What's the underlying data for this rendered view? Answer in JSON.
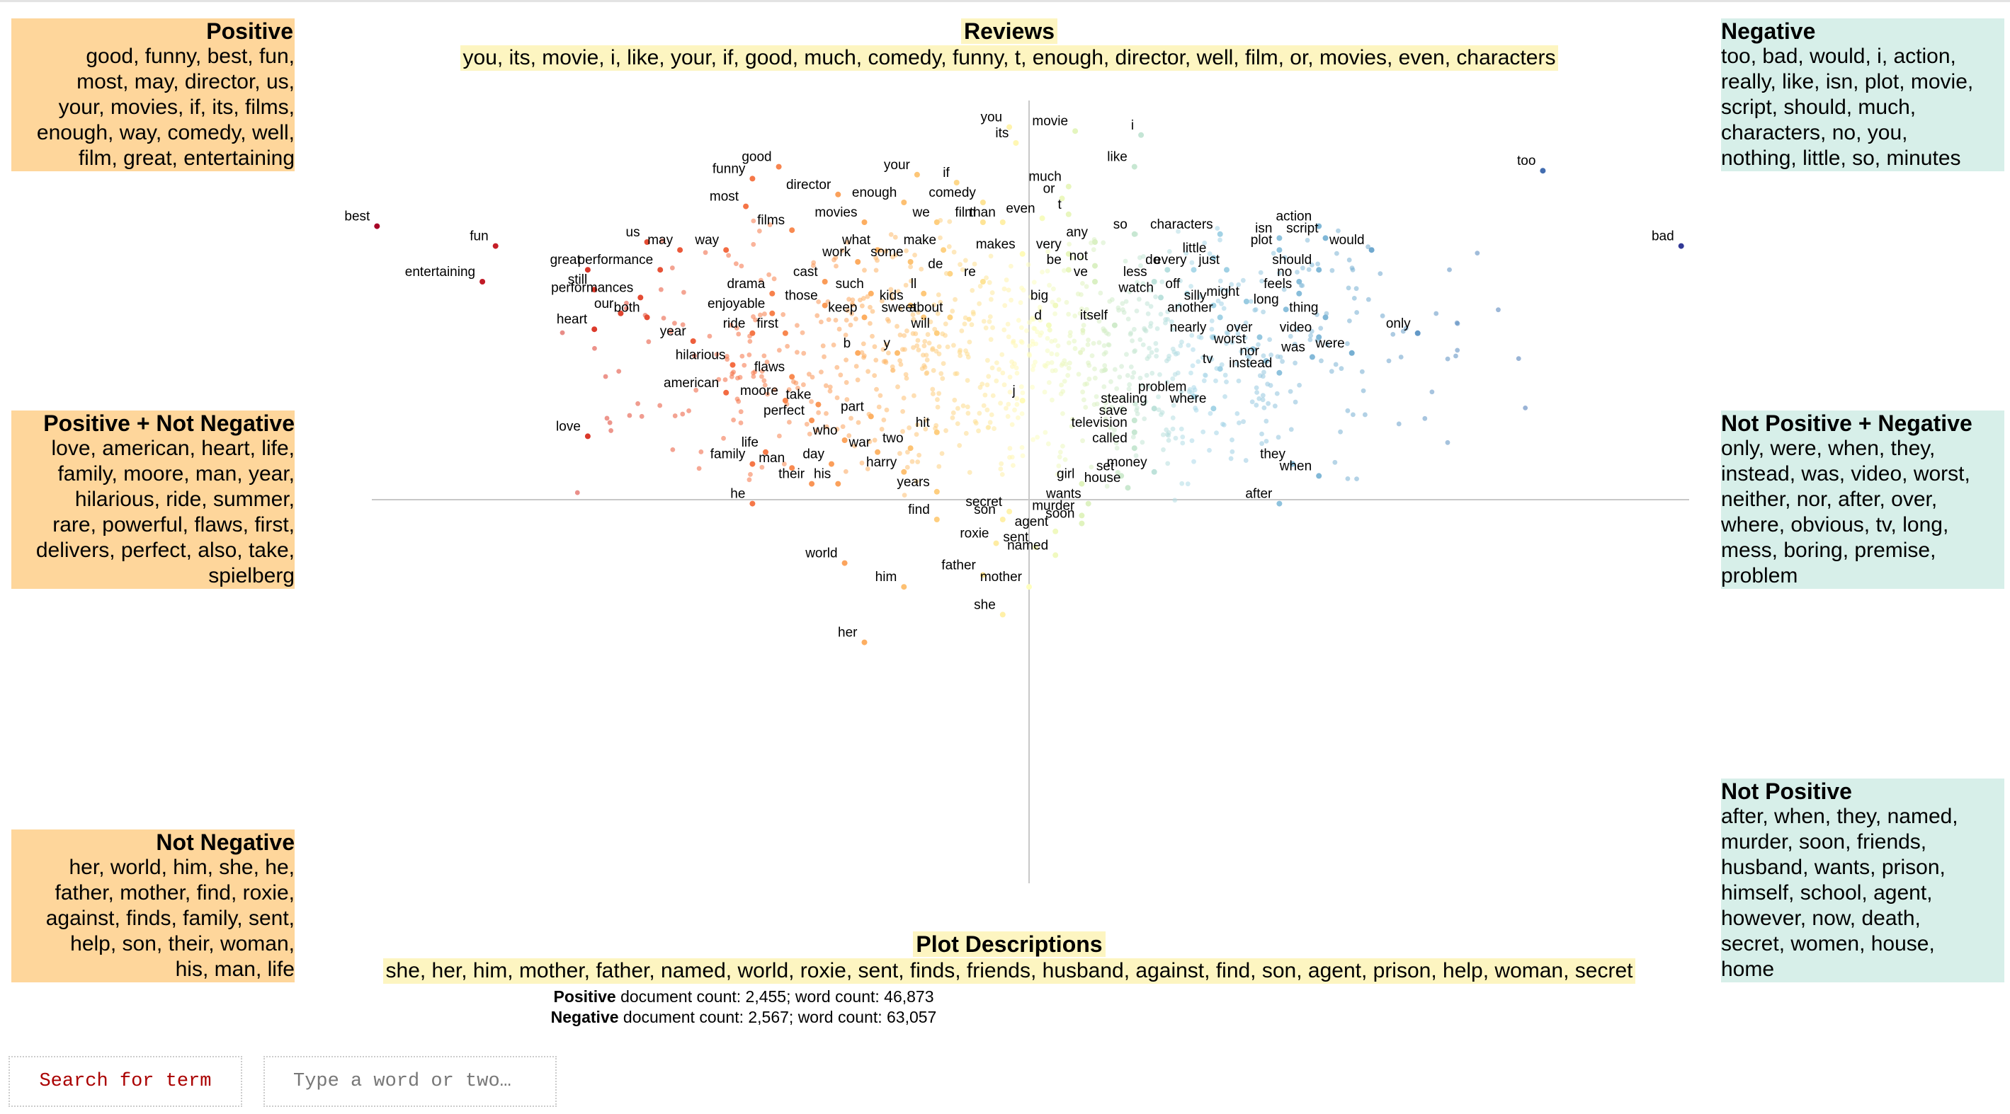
{
  "panels": {
    "positive": {
      "title": "Positive",
      "lines": [
        "good, funny, best, fun,",
        "most, may, director, us,",
        "your, movies, if, its, films,",
        "enough, way, comedy, well,",
        "film, great, entertaining"
      ]
    },
    "positive_not_negative": {
      "title": "Positive + Not Negative",
      "lines": [
        "love, american, heart, life,",
        "family, moore, man, year,",
        "hilarious, ride, summer,",
        "rare, powerful, flaws, first,",
        "delivers, perfect, also, take,",
        "spielberg"
      ]
    },
    "not_negative": {
      "title": "Not Negative",
      "lines": [
        "her, world, him, she, he,",
        "father, mother, find, roxie,",
        "against, finds, family, sent,",
        "help, son, their, woman,",
        "his, man, life"
      ]
    },
    "negative": {
      "title": "Negative",
      "lines": [
        "too, bad, would, i, action,",
        "really, like, isn, plot, movie,",
        "script, should, much,",
        "characters, no, you,",
        "nothing, little, so, minutes"
      ]
    },
    "not_positive_negative": {
      "title": "Not Positive + Negative",
      "lines": [
        "only, were, when, they,",
        "instead, was, video, worst,",
        "neither, nor, after, over,",
        "where, obvious, tv, long,",
        "mess, boring, premise,",
        "problem"
      ]
    },
    "not_positive": {
      "title": "Not Positive",
      "lines": [
        "after, when, they, named,",
        "murder, soon, friends,",
        "husband, wants, prison,",
        "himself, school, agent,",
        "however, now, death,",
        "secret, women, house,",
        "home"
      ]
    }
  },
  "reviews": {
    "title": "Reviews",
    "terms": "you, its, movie, i, like, your, if, good, much, comedy, funny, t, enough, director, well, film, or, movies, even, characters"
  },
  "plot": {
    "title": "Plot Descriptions",
    "terms": "she, her, him, mother, father, named, world, roxie, sent, finds, friends, husband, against, find, son, agent, prison, help, woman, secret"
  },
  "stats": {
    "positive_label": "Positive",
    "positive_text": " document count: 2,455; word count: 46,873",
    "negative_label": "Negative",
    "negative_text": " document count: 2,567; word count: 63,057"
  },
  "search": {
    "button_label": "Search for term",
    "placeholder": "Type a word or two…"
  },
  "colors": {
    "positive": "#fed69b",
    "negative": "#d7efe9",
    "neutral": "#fdf5c1"
  },
  "chart_data": {
    "type": "scatter",
    "x_axis": "negative (left) to positive... see terms",
    "xlim": [
      -1,
      1
    ],
    "ylim": [
      -1,
      1
    ],
    "color_scale": "diverging red-yellow-blue by x",
    "labeled_points": [
      {
        "t": "you",
        "x": -0.03,
        "y": 0.94
      },
      {
        "t": "its",
        "x": -0.02,
        "y": 0.9
      },
      {
        "t": "movie",
        "x": 0.07,
        "y": 0.93
      },
      {
        "t": "i",
        "x": 0.17,
        "y": 0.92
      },
      {
        "t": "like",
        "x": 0.16,
        "y": 0.84
      },
      {
        "t": "good",
        "x": -0.38,
        "y": 0.84
      },
      {
        "t": "funny",
        "x": -0.42,
        "y": 0.81
      },
      {
        "t": "your",
        "x": -0.17,
        "y": 0.82
      },
      {
        "t": "if",
        "x": -0.11,
        "y": 0.8
      },
      {
        "t": "much",
        "x": 0.06,
        "y": 0.79
      },
      {
        "t": "director",
        "x": -0.29,
        "y": 0.77
      },
      {
        "t": "enough",
        "x": -0.19,
        "y": 0.75
      },
      {
        "t": "comedy",
        "x": -0.07,
        "y": 0.75
      },
      {
        "t": "or",
        "x": 0.05,
        "y": 0.76
      },
      {
        "t": "most",
        "x": -0.43,
        "y": 0.74
      },
      {
        "t": "t",
        "x": 0.06,
        "y": 0.72
      },
      {
        "t": "even",
        "x": 0.02,
        "y": 0.71
      },
      {
        "t": "best",
        "x": -0.99,
        "y": 0.69
      },
      {
        "t": "movies",
        "x": -0.25,
        "y": 0.7
      },
      {
        "t": "we",
        "x": -0.14,
        "y": 0.7
      },
      {
        "t": "film",
        "x": -0.07,
        "y": 0.7
      },
      {
        "t": "than",
        "x": -0.04,
        "y": 0.7
      },
      {
        "t": "films",
        "x": -0.36,
        "y": 0.68
      },
      {
        "t": "too",
        "x": 0.78,
        "y": 0.83
      },
      {
        "t": "bad",
        "x": 0.99,
        "y": 0.64
      },
      {
        "t": "action",
        "x": 0.44,
        "y": 0.69
      },
      {
        "t": "so",
        "x": 0.16,
        "y": 0.67
      },
      {
        "t": "characters",
        "x": 0.29,
        "y": 0.67
      },
      {
        "t": "isn",
        "x": 0.38,
        "y": 0.66
      },
      {
        "t": "script",
        "x": 0.45,
        "y": 0.66
      },
      {
        "t": "any",
        "x": 0.1,
        "y": 0.65
      },
      {
        "t": "fun",
        "x": -0.81,
        "y": 0.64
      },
      {
        "t": "us",
        "x": -0.58,
        "y": 0.65
      },
      {
        "t": "may",
        "x": -0.53,
        "y": 0.63
      },
      {
        "t": "way",
        "x": -0.46,
        "y": 0.63
      },
      {
        "t": "what",
        "x": -0.23,
        "y": 0.63
      },
      {
        "t": "make",
        "x": -0.13,
        "y": 0.63
      },
      {
        "t": "would",
        "x": 0.52,
        "y": 0.63
      },
      {
        "t": "plot",
        "x": 0.38,
        "y": 0.63
      },
      {
        "t": "makes",
        "x": -0.01,
        "y": 0.62
      },
      {
        "t": "very",
        "x": 0.06,
        "y": 0.62
      },
      {
        "t": "little",
        "x": 0.28,
        "y": 0.61
      },
      {
        "t": "work",
        "x": -0.26,
        "y": 0.6
      },
      {
        "t": "some",
        "x": -0.18,
        "y": 0.6
      },
      {
        "t": "not",
        "x": 0.1,
        "y": 0.59
      },
      {
        "t": "do",
        "x": 0.21,
        "y": 0.58
      },
      {
        "t": "every",
        "x": 0.25,
        "y": 0.58
      },
      {
        "t": "just",
        "x": 0.3,
        "y": 0.58
      },
      {
        "t": "should",
        "x": 0.44,
        "y": 0.58
      },
      {
        "t": "great",
        "x": -0.67,
        "y": 0.58
      },
      {
        "t": "performance",
        "x": -0.56,
        "y": 0.58
      },
      {
        "t": "de",
        "x": -0.12,
        "y": 0.57
      },
      {
        "t": "be",
        "x": 0.06,
        "y": 0.58
      },
      {
        "t": "re",
        "x": -0.07,
        "y": 0.55
      },
      {
        "t": "ve",
        "x": 0.1,
        "y": 0.55
      },
      {
        "t": "less",
        "x": 0.19,
        "y": 0.55
      },
      {
        "t": "no",
        "x": 0.41,
        "y": 0.55
      },
      {
        "t": "entertaining",
        "x": -0.83,
        "y": 0.55
      },
      {
        "t": "cast",
        "x": -0.31,
        "y": 0.55
      },
      {
        "t": "feels",
        "x": 0.41,
        "y": 0.52
      },
      {
        "t": "still",
        "x": -0.66,
        "y": 0.53
      },
      {
        "t": "drama",
        "x": -0.39,
        "y": 0.52
      },
      {
        "t": "ll",
        "x": -0.16,
        "y": 0.52
      },
      {
        "t": "such",
        "x": -0.24,
        "y": 0.52
      },
      {
        "t": "off",
        "x": 0.24,
        "y": 0.52
      },
      {
        "t": "watch",
        "x": 0.2,
        "y": 0.51
      },
      {
        "t": "silly",
        "x": 0.28,
        "y": 0.49
      },
      {
        "t": "might",
        "x": 0.33,
        "y": 0.5
      },
      {
        "t": "performances",
        "x": -0.59,
        "y": 0.51
      },
      {
        "t": "those",
        "x": -0.31,
        "y": 0.49
      },
      {
        "t": "kids",
        "x": -0.18,
        "y": 0.49
      },
      {
        "t": "big",
        "x": 0.04,
        "y": 0.49
      },
      {
        "t": "long",
        "x": 0.39,
        "y": 0.48
      },
      {
        "t": "enjoyable",
        "x": -0.39,
        "y": 0.47
      },
      {
        "t": "keep",
        "x": -0.25,
        "y": 0.46
      },
      {
        "t": "sweet",
        "x": -0.16,
        "y": 0.46
      },
      {
        "t": "about",
        "x": -0.12,
        "y": 0.46
      },
      {
        "t": "thing",
        "x": 0.45,
        "y": 0.46
      },
      {
        "t": "our",
        "x": -0.62,
        "y": 0.47
      },
      {
        "t": "both",
        "x": -0.58,
        "y": 0.46
      },
      {
        "t": "another",
        "x": 0.29,
        "y": 0.46
      },
      {
        "t": "d",
        "x": 0.03,
        "y": 0.44
      },
      {
        "t": "itself",
        "x": 0.13,
        "y": 0.44
      },
      {
        "t": "heart",
        "x": -0.66,
        "y": 0.43
      },
      {
        "t": "ride",
        "x": -0.42,
        "y": 0.42
      },
      {
        "t": "first",
        "x": -0.37,
        "y": 0.42
      },
      {
        "t": "will",
        "x": -0.14,
        "y": 0.42
      },
      {
        "t": "nearly",
        "x": 0.28,
        "y": 0.41
      },
      {
        "t": "over",
        "x": 0.35,
        "y": 0.41
      },
      {
        "t": "video",
        "x": 0.44,
        "y": 0.41
      },
      {
        "t": "only",
        "x": 0.59,
        "y": 0.42
      },
      {
        "t": "year",
        "x": -0.51,
        "y": 0.4
      },
      {
        "t": "b",
        "x": -0.26,
        "y": 0.37
      },
      {
        "t": "y",
        "x": -0.2,
        "y": 0.37
      },
      {
        "t": "worst",
        "x": 0.34,
        "y": 0.38
      },
      {
        "t": "was",
        "x": 0.43,
        "y": 0.36
      },
      {
        "t": "were",
        "x": 0.49,
        "y": 0.37
      },
      {
        "t": "hilarious",
        "x": -0.45,
        "y": 0.34
      },
      {
        "t": "nor",
        "x": 0.36,
        "y": 0.35
      },
      {
        "t": "tv",
        "x": 0.29,
        "y": 0.33
      },
      {
        "t": "flaws",
        "x": -0.36,
        "y": 0.31
      },
      {
        "t": "instead",
        "x": 0.38,
        "y": 0.32
      },
      {
        "t": "american",
        "x": -0.46,
        "y": 0.27
      },
      {
        "t": "moore",
        "x": -0.37,
        "y": 0.25
      },
      {
        "t": "take",
        "x": -0.32,
        "y": 0.24
      },
      {
        "t": "j",
        "x": -0.01,
        "y": 0.25
      },
      {
        "t": "problem",
        "x": 0.25,
        "y": 0.26
      },
      {
        "t": "stealing",
        "x": 0.19,
        "y": 0.23
      },
      {
        "t": "where",
        "x": 0.28,
        "y": 0.23
      },
      {
        "t": "perfect",
        "x": -0.33,
        "y": 0.2
      },
      {
        "t": "part",
        "x": -0.24,
        "y": 0.21
      },
      {
        "t": "save",
        "x": 0.16,
        "y": 0.2
      },
      {
        "t": "love",
        "x": -0.67,
        "y": 0.16
      },
      {
        "t": "hit",
        "x": -0.14,
        "y": 0.17
      },
      {
        "t": "who",
        "x": -0.28,
        "y": 0.15
      },
      {
        "t": "television",
        "x": 0.16,
        "y": 0.17
      },
      {
        "t": "war",
        "x": -0.23,
        "y": 0.12
      },
      {
        "t": "two",
        "x": -0.18,
        "y": 0.13
      },
      {
        "t": "called",
        "x": 0.16,
        "y": 0.13
      },
      {
        "t": "life",
        "x": -0.4,
        "y": 0.12
      },
      {
        "t": "family",
        "x": -0.42,
        "y": 0.09
      },
      {
        "t": "day",
        "x": -0.3,
        "y": 0.09
      },
      {
        "t": "man",
        "x": -0.36,
        "y": 0.08
      },
      {
        "t": "they",
        "x": 0.4,
        "y": 0.09
      },
      {
        "t": "when",
        "x": 0.44,
        "y": 0.06
      },
      {
        "t": "harry",
        "x": -0.19,
        "y": 0.07
      },
      {
        "t": "money",
        "x": 0.19,
        "y": 0.07
      },
      {
        "t": "set",
        "x": 0.14,
        "y": 0.06
      },
      {
        "t": "girl",
        "x": 0.08,
        "y": 0.04
      },
      {
        "t": "house",
        "x": 0.15,
        "y": 0.03
      },
      {
        "t": "their",
        "x": -0.33,
        "y": 0.04
      },
      {
        "t": "his",
        "x": -0.29,
        "y": 0.04
      },
      {
        "t": "years",
        "x": -0.14,
        "y": 0.02
      },
      {
        "t": "he",
        "x": -0.42,
        "y": -0.01
      },
      {
        "t": "wants",
        "x": 0.09,
        "y": -0.01
      },
      {
        "t": "after",
        "x": 0.38,
        "y": -0.01
      },
      {
        "t": "secret",
        "x": -0.03,
        "y": -0.03
      },
      {
        "t": "murder",
        "x": 0.08,
        "y": -0.04
      },
      {
        "t": "son",
        "x": -0.04,
        "y": -0.05
      },
      {
        "t": "find",
        "x": -0.14,
        "y": -0.05
      },
      {
        "t": "soon",
        "x": 0.08,
        "y": -0.06
      },
      {
        "t": "agent",
        "x": 0.04,
        "y": -0.08
      },
      {
        "t": "roxie",
        "x": -0.05,
        "y": -0.11
      },
      {
        "t": "sent",
        "x": 0.01,
        "y": -0.12
      },
      {
        "t": "named",
        "x": 0.04,
        "y": -0.14
      },
      {
        "t": "world",
        "x": -0.28,
        "y": -0.16
      },
      {
        "t": "father",
        "x": -0.07,
        "y": -0.19
      },
      {
        "t": "him",
        "x": -0.19,
        "y": -0.22
      },
      {
        "t": "mother",
        "x": 0.0,
        "y": -0.22
      },
      {
        "t": "she",
        "x": -0.04,
        "y": -0.29
      },
      {
        "t": "her",
        "x": -0.25,
        "y": -0.36
      }
    ]
  }
}
